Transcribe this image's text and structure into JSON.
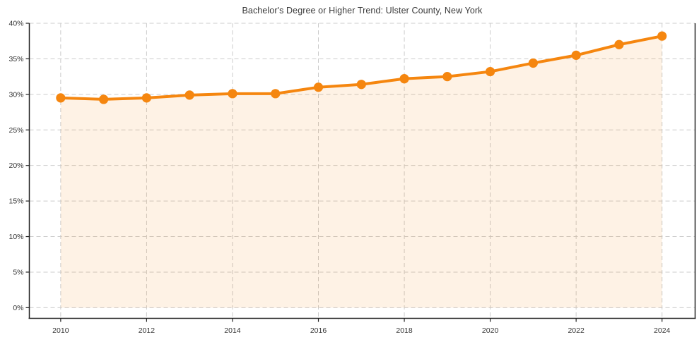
{
  "chart_data": {
    "type": "line",
    "title": "Bachelor's Degree or Higher Trend: Ulster County, New York",
    "x": [
      2010,
      2011,
      2012,
      2013,
      2014,
      2015,
      2016,
      2017,
      2018,
      2019,
      2020,
      2021,
      2022,
      2023,
      2024
    ],
    "series": [
      {
        "name": "Bachelor's Degree or Higher",
        "values": [
          29.5,
          29.3,
          29.5,
          29.9,
          30.1,
          30.1,
          31.0,
          31.4,
          32.2,
          32.5,
          33.2,
          34.4,
          35.5,
          37.0,
          38.2
        ],
        "color": "#f5860f",
        "fill_below": true,
        "fill_color": "rgba(245,134,15,0.11)",
        "marker": "circle"
      }
    ],
    "xlabel": "",
    "ylabel": "",
    "xlim": [
      2009.27,
      2024.77
    ],
    "ylim": [
      -1.5,
      40
    ],
    "xtick_values": [
      2010,
      2012,
      2014,
      2016,
      2018,
      2020,
      2022,
      2024
    ],
    "xtick_labels": [
      "2010",
      "2012",
      "2014",
      "2016",
      "2018",
      "2020",
      "2022",
      "2024"
    ],
    "ytick_values": [
      0,
      5,
      10,
      15,
      20,
      25,
      30,
      35,
      40
    ],
    "ytick_labels": [
      "0%",
      "5%",
      "10%",
      "15%",
      "20%",
      "25%",
      "30%",
      "35%",
      "40%"
    ],
    "grid": true,
    "grid_style": "dashed",
    "legend": "none",
    "colors": {
      "line": "#f5860f",
      "area_fill": "rgba(245,134,15,0.11)",
      "grid": "#cccccc",
      "axis": "#222222",
      "tick_text": "#333333",
      "title_text": "#3a3a3a",
      "background": "#ffffff"
    }
  }
}
